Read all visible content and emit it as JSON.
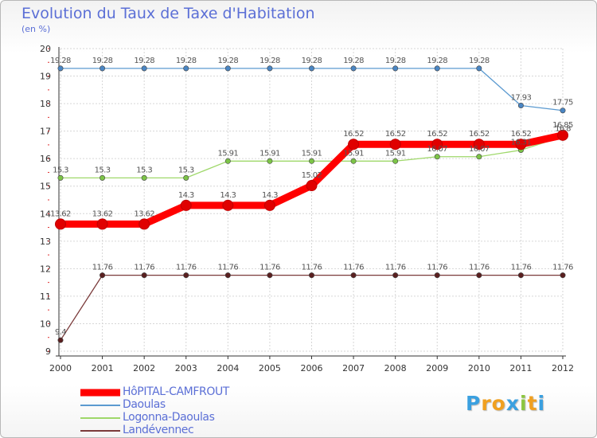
{
  "header": {
    "title": "Evolution du Taux de Taxe d'Habitation",
    "subtitle": "(en %)"
  },
  "chart_data": {
    "type": "line",
    "title": "Evolution du Taux de Taxe d'Habitation",
    "ylabel": "(en %)",
    "xlabel": "",
    "categories": [
      "2000",
      "2001",
      "2002",
      "2003",
      "2004",
      "2005",
      "2006",
      "2007",
      "2008",
      "2009",
      "2010",
      "2011",
      "2012"
    ],
    "yticks": [
      9,
      10,
      11,
      12,
      13,
      14,
      15,
      16,
      17,
      18,
      19,
      20
    ],
    "ylim": [
      9,
      20
    ],
    "grid": true,
    "legend_position": "bottom-left",
    "series": [
      {
        "name": "Daoulas",
        "color": "#5b9ad0",
        "marker": "#4a86c4",
        "weight": "thin",
        "values": [
          19.28,
          19.28,
          19.28,
          19.28,
          19.28,
          19.28,
          19.28,
          19.28,
          19.28,
          19.28,
          19.28,
          17.93,
          17.75
        ],
        "labels": [
          "19.28",
          "19.28",
          "19.28",
          "19.28",
          "19.28",
          "19.28",
          "19.28",
          "19.28",
          "19.28",
          "19.28",
          "19.28",
          "17.93",
          "17.75"
        ]
      },
      {
        "name": "Logonna-Daoulas",
        "color": "#9fd86a",
        "marker": "#7cc447",
        "weight": "thin",
        "values": [
          15.3,
          15.3,
          15.3,
          15.3,
          15.91,
          15.91,
          15.91,
          15.91,
          15.91,
          16.07,
          16.07,
          16.31,
          16.8
        ],
        "labels": [
          "15.3",
          "15.3",
          "15.3",
          "15.3",
          "15.91",
          "15.91",
          "15.91",
          "15.91",
          "15.91",
          "16.07",
          "16.07",
          "16.31",
          "16.8"
        ]
      },
      {
        "name": "Landévennec",
        "color": "#7a3a3a",
        "marker": "#5a1f1f",
        "weight": "thin",
        "values": [
          9.4,
          11.76,
          11.76,
          11.76,
          11.76,
          11.76,
          11.76,
          11.76,
          11.76,
          11.76,
          11.76,
          11.76,
          11.76
        ],
        "labels": [
          "9.4",
          "11.76",
          "11.76",
          "11.76",
          "11.76",
          "11.76",
          "11.76",
          "11.76",
          "11.76",
          "11.76",
          "11.76",
          "11.76",
          "11.76"
        ]
      },
      {
        "name": "HôPITAL-CAMFROUT",
        "color": "#ff0000",
        "marker": "#e00000",
        "weight": "thick",
        "values": [
          13.62,
          13.62,
          13.62,
          14.3,
          14.3,
          14.3,
          15.02,
          16.52,
          16.52,
          16.52,
          16.52,
          16.52,
          16.85
        ],
        "labels": [
          "13.62",
          "13.62",
          "13.62",
          "14.3",
          "14.3",
          "14.3",
          "15.02",
          "16.52",
          "16.52",
          "16.52",
          "16.52",
          "16.52",
          "16.85"
        ]
      }
    ]
  },
  "legend": {
    "items": [
      {
        "label": "HôPITAL-CAMFROUT",
        "color": "#ff0000"
      },
      {
        "label": "Daoulas",
        "color": "#5b9ad0"
      },
      {
        "label": "Logonna-Daoulas",
        "color": "#9fd86a"
      },
      {
        "label": "Landévennec",
        "color": "#7a3a3a"
      }
    ]
  },
  "logo": {
    "text": "Proxiti",
    "letters": [
      "P",
      "r",
      "o",
      "x",
      "i",
      "t",
      "i"
    ],
    "colors": [
      "#3aa0e0",
      "#f0a020",
      "#f0a020",
      "#3aa0e0",
      "#8cc63f",
      "#f0a020",
      "#3aa0e0"
    ]
  }
}
